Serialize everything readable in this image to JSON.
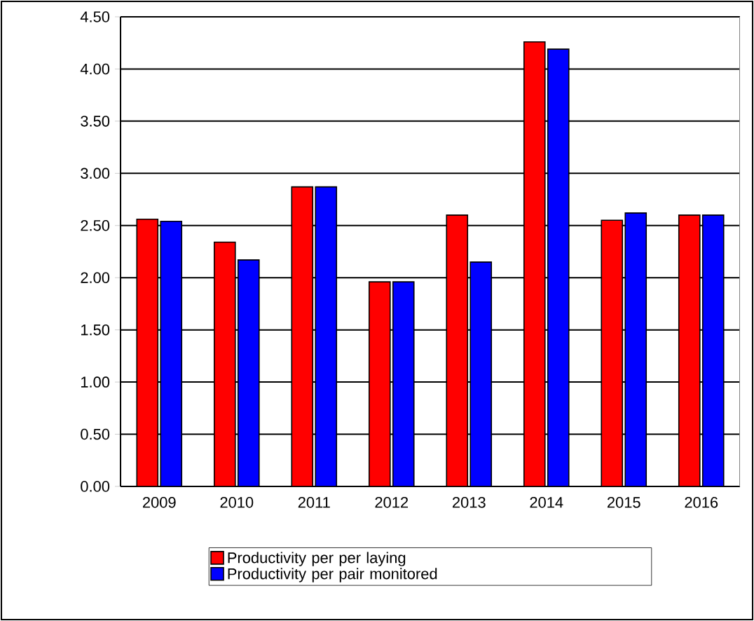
{
  "chart_data": {
    "type": "bar",
    "categories": [
      "2009",
      "2010",
      "2011",
      "2012",
      "2013",
      "2014",
      "2015",
      "2016"
    ],
    "series": [
      {
        "name": "Productivity per per laying",
        "color": "#ff0000",
        "values": [
          2.56,
          2.34,
          2.87,
          1.96,
          2.6,
          4.26,
          2.55,
          2.6
        ]
      },
      {
        "name": "Productivity per pair monitored",
        "color": "#0000ff",
        "values": [
          2.54,
          2.17,
          2.87,
          1.96,
          2.15,
          4.19,
          2.62,
          2.6
        ]
      }
    ],
    "ylim": [
      0,
      4.5
    ],
    "yticks": [
      {
        "value": 0,
        "label": "0.00"
      },
      {
        "value": 0.5,
        "label": "0.50"
      },
      {
        "value": 1,
        "label": "1.00"
      },
      {
        "value": 1.5,
        "label": "1.50"
      },
      {
        "value": 2,
        "label": "2.00"
      },
      {
        "value": 2.5,
        "label": "2.50"
      },
      {
        "value": 3,
        "label": "3.00"
      },
      {
        "value": 3.5,
        "label": "3.50"
      },
      {
        "value": 4,
        "label": "4.00"
      },
      {
        "value": 4.5,
        "label": "4.50"
      }
    ],
    "grid": "y",
    "legend": "bottom"
  }
}
